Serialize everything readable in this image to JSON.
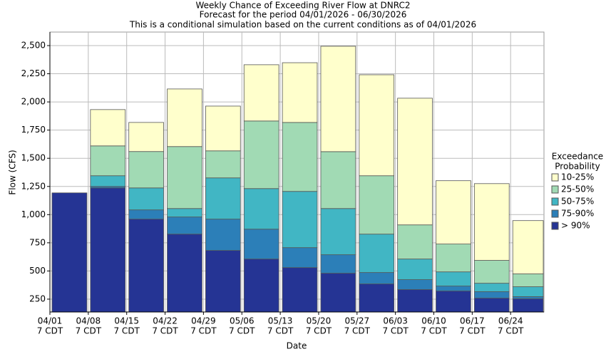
{
  "chart_data": {
    "type": "bar",
    "title": "Weekly Chance of Exceeding River Flow at DNRC2",
    "subtitles": [
      "Forecast for the period 04/01/2026 - 06/30/2026",
      "This is a conditional simulation based on the current conditions as of 04/01/2026"
    ],
    "x_label": "Date",
    "y_label": "Flow (CFS)",
    "xticks": [
      {
        "date": "04/01",
        "time": "7 CDT"
      },
      {
        "date": "04/08",
        "time": "7 CDT"
      },
      {
        "date": "04/15",
        "time": "7 CDT"
      },
      {
        "date": "04/22",
        "time": "7 CDT"
      },
      {
        "date": "04/29",
        "time": "7 CDT"
      },
      {
        "date": "05/06",
        "time": "7 CDT"
      },
      {
        "date": "05/13",
        "time": "7 CDT"
      },
      {
        "date": "05/20",
        "time": "7 CDT"
      },
      {
        "date": "05/27",
        "time": "7 CDT"
      },
      {
        "date": "06/03",
        "time": "7 CDT"
      },
      {
        "date": "06/10",
        "time": "7 CDT"
      },
      {
        "date": "06/17",
        "time": "7 CDT"
      },
      {
        "date": "06/24",
        "time": "7 CDT"
      }
    ],
    "ylim": [
      136,
      2620
    ],
    "yticks": [
      250,
      500,
      750,
      {
        "value": 1000,
        "label": "1,000"
      },
      {
        "value": 1250,
        "label": "1,250"
      },
      {
        "value": 1500,
        "label": "1,500"
      },
      {
        "value": 1750,
        "label": "1,750"
      },
      {
        "value": 2000,
        "label": "2,000"
      },
      {
        "value": 2250,
        "label": "2,250"
      },
      {
        "value": 2500,
        "label": "2,500"
      }
    ],
    "grid": true,
    "legend_title": [
      "Exceedance",
      "Probability"
    ],
    "legend_position": "right",
    "series": [
      {
        "name": "> 90%",
        "color": "#253494",
        "values": [
          1193,
          1237,
          960,
          827,
          682,
          606,
          530,
          480,
          385,
          335,
          322,
          259,
          253
        ]
      },
      {
        "name": "75-90%",
        "color": "#2c7fb8",
        "values": [
          null,
          1250,
          1042,
          979,
          960,
          871,
          707,
          644,
          486,
          423,
          366,
          316,
          272
        ]
      },
      {
        "name": "50-75%",
        "color": "#41b6c4",
        "values": [
          null,
          1345,
          1237,
          1054,
          1326,
          1231,
          1206,
          1054,
          827,
          606,
          492,
          391,
          360
        ]
      },
      {
        "name": "25-50%",
        "color": "#a1dab4",
        "values": [
          null,
          1610,
          1560,
          1604,
          1566,
          1831,
          1818,
          1559,
          1345,
          909,
          739,
          594,
          474
        ]
      },
      {
        "name": "10-25%",
        "color": "#ffffcc",
        "values": [
          null,
          1932,
          1818,
          2115,
          1963,
          2330,
          2348,
          2494,
          2241,
          2033,
          1301,
          1275,
          947
        ]
      }
    ]
  }
}
